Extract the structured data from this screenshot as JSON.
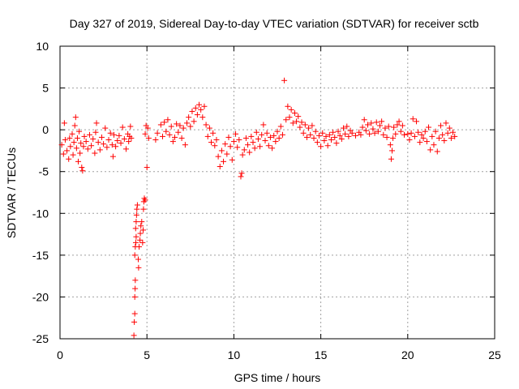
{
  "chart_data": {
    "type": "scatter",
    "title": "Day 327 of 2019, Sidereal Day-to-day VTEC variation (SDTVAR) for receiver sctb",
    "xlabel": "GPS time / hours",
    "ylabel": "SDTVAR / TECUs",
    "xlim": [
      0,
      25
    ],
    "ylim": [
      -25,
      10
    ],
    "xticks": [
      0,
      5,
      10,
      15,
      20,
      25
    ],
    "yticks": [
      -25,
      -20,
      -15,
      -10,
      -5,
      0,
      5,
      10
    ],
    "grid": true,
    "marker": "+",
    "color": "#ff0000",
    "series": [
      {
        "name": "SDTVAR",
        "points": [
          [
            0.1,
            -1.8
          ],
          [
            0.2,
            -2.9
          ],
          [
            0.25,
            0.8
          ],
          [
            0.3,
            -1.2
          ],
          [
            0.4,
            -2.5
          ],
          [
            0.5,
            -3.5
          ],
          [
            0.55,
            -1.0
          ],
          [
            0.6,
            -2.0
          ],
          [
            0.7,
            -0.5
          ],
          [
            0.75,
            -3.0
          ],
          [
            0.8,
            -1.5
          ],
          [
            0.85,
            0.5
          ],
          [
            0.9,
            1.5
          ],
          [
            0.95,
            -2.2
          ],
          [
            1.0,
            -1.0
          ],
          [
            1.05,
            -3.8
          ],
          [
            1.1,
            -0.2
          ],
          [
            1.15,
            -2.8
          ],
          [
            1.2,
            -1.6
          ],
          [
            1.25,
            -4.5
          ],
          [
            1.3,
            -4.9
          ],
          [
            1.35,
            -2.0
          ],
          [
            1.4,
            -0.8
          ],
          [
            1.5,
            -1.4
          ],
          [
            1.6,
            -2.3
          ],
          [
            1.7,
            -0.6
          ],
          [
            1.8,
            -1.9
          ],
          [
            1.9,
            -1.1
          ],
          [
            2.0,
            -2.8
          ],
          [
            2.05,
            -0.3
          ],
          [
            2.1,
            0.8
          ],
          [
            2.2,
            -1.5
          ],
          [
            2.3,
            -2.4
          ],
          [
            2.4,
            -0.9
          ],
          [
            2.5,
            -1.7
          ],
          [
            2.6,
            0.2
          ],
          [
            2.7,
            -2.1
          ],
          [
            2.8,
            -1.2
          ],
          [
            2.9,
            -0.4
          ],
          [
            3.0,
            -1.8
          ],
          [
            3.05,
            -3.2
          ],
          [
            3.1,
            -0.6
          ],
          [
            3.2,
            -2.0
          ],
          [
            3.3,
            -1.3
          ],
          [
            3.4,
            -0.7
          ],
          [
            3.5,
            -1.6
          ],
          [
            3.6,
            0.3
          ],
          [
            3.7,
            -1.1
          ],
          [
            3.8,
            -2.3
          ],
          [
            3.9,
            -0.5
          ],
          [
            3.95,
            -1.4
          ],
          [
            4.0,
            -0.8
          ],
          [
            4.05,
            0.4
          ],
          [
            4.1,
            -1.0
          ],
          [
            4.25,
            -24.6
          ],
          [
            4.27,
            -23.0
          ],
          [
            4.3,
            -22.0
          ],
          [
            4.3,
            -20.0
          ],
          [
            4.32,
            -19.0
          ],
          [
            4.33,
            -18.0
          ],
          [
            4.3,
            -15.0
          ],
          [
            4.33,
            -14.0
          ],
          [
            4.36,
            -13.5
          ],
          [
            4.38,
            -12.8
          ],
          [
            4.35,
            -11.8
          ],
          [
            4.38,
            -11.0
          ],
          [
            4.4,
            -10.2
          ],
          [
            4.42,
            -9.5
          ],
          [
            4.45,
            -9.0
          ],
          [
            4.5,
            -15.5
          ],
          [
            4.52,
            -16.5
          ],
          [
            4.55,
            -14.0
          ],
          [
            4.6,
            -13.2
          ],
          [
            4.62,
            -12.4
          ],
          [
            4.65,
            -11.5
          ],
          [
            4.7,
            -11.0
          ],
          [
            4.75,
            -13.5
          ],
          [
            4.78,
            -12.0
          ],
          [
            4.8,
            -9.5
          ],
          [
            4.82,
            -8.6
          ],
          [
            4.85,
            -8.2
          ],
          [
            4.9,
            -8.4
          ],
          [
            4.9,
            -0.5
          ],
          [
            4.95,
            0.5
          ],
          [
            5.0,
            -4.5
          ],
          [
            5.05,
            0.2
          ],
          [
            5.1,
            -1.0
          ],
          [
            5.5,
            -1.2
          ],
          [
            5.6,
            -0.4
          ],
          [
            5.8,
            0.6
          ],
          [
            5.9,
            -0.8
          ],
          [
            6.0,
            0.9
          ],
          [
            6.1,
            -0.2
          ],
          [
            6.2,
            1.2
          ],
          [
            6.3,
            -0.6
          ],
          [
            6.4,
            0.4
          ],
          [
            6.5,
            -1.4
          ],
          [
            6.6,
            -0.9
          ],
          [
            6.7,
            0.7
          ],
          [
            6.8,
            -0.3
          ],
          [
            6.9,
            0.5
          ],
          [
            7.0,
            -1.0
          ],
          [
            7.1,
            0.2
          ],
          [
            7.2,
            -1.8
          ],
          [
            7.3,
            0.8
          ],
          [
            7.4,
            1.5
          ],
          [
            7.5,
            0.4
          ],
          [
            7.6,
            2.2
          ],
          [
            7.7,
            1.0
          ],
          [
            7.8,
            2.6
          ],
          [
            7.9,
            1.8
          ],
          [
            8.0,
            3.0
          ],
          [
            8.1,
            2.4
          ],
          [
            8.2,
            1.5
          ],
          [
            8.3,
            2.8
          ],
          [
            8.4,
            0.6
          ],
          [
            8.5,
            -0.8
          ],
          [
            8.6,
            0.2
          ],
          [
            8.7,
            -1.5
          ],
          [
            8.8,
            -0.4
          ],
          [
            8.9,
            -1.9
          ],
          [
            9.0,
            -1.2
          ],
          [
            9.1,
            -3.2
          ],
          [
            9.2,
            -4.4
          ],
          [
            9.3,
            -2.5
          ],
          [
            9.4,
            -3.8
          ],
          [
            9.5,
            -1.7
          ],
          [
            9.6,
            -2.9
          ],
          [
            9.7,
            -0.9
          ],
          [
            9.8,
            -2.0
          ],
          [
            9.9,
            -3.6
          ],
          [
            10.0,
            -1.4
          ],
          [
            10.1,
            -0.5
          ],
          [
            10.2,
            -2.1
          ],
          [
            10.3,
            -1.2
          ],
          [
            10.4,
            -5.6
          ],
          [
            10.45,
            -5.2
          ],
          [
            10.5,
            -3.0
          ],
          [
            10.6,
            -2.4
          ],
          [
            10.7,
            -1.0
          ],
          [
            10.8,
            -1.8
          ],
          [
            10.9,
            -2.7
          ],
          [
            11.0,
            -0.8
          ],
          [
            11.1,
            -1.5
          ],
          [
            11.2,
            -2.2
          ],
          [
            11.3,
            -0.3
          ],
          [
            11.4,
            -1.1
          ],
          [
            11.5,
            -2.0
          ],
          [
            11.6,
            -0.6
          ],
          [
            11.7,
            0.6
          ],
          [
            11.8,
            -1.3
          ],
          [
            11.9,
            -0.4
          ],
          [
            12.0,
            -1.9
          ],
          [
            12.1,
            -0.9
          ],
          [
            12.2,
            -2.2
          ],
          [
            12.3,
            -0.7
          ],
          [
            12.4,
            -1.4
          ],
          [
            12.5,
            -0.2
          ],
          [
            12.6,
            -1.0
          ],
          [
            12.7,
            0.4
          ],
          [
            12.8,
            -0.6
          ],
          [
            12.9,
            5.9
          ],
          [
            13.0,
            1.2
          ],
          [
            13.1,
            2.8
          ],
          [
            13.2,
            1.5
          ],
          [
            13.3,
            2.4
          ],
          [
            13.4,
            0.8
          ],
          [
            13.5,
            2.0
          ],
          [
            13.6,
            1.0
          ],
          [
            13.7,
            1.6
          ],
          [
            13.8,
            0.3
          ],
          [
            13.9,
            0.9
          ],
          [
            14.0,
            -0.4
          ],
          [
            14.1,
            0.6
          ],
          [
            14.2,
            -0.9
          ],
          [
            14.3,
            0.2
          ],
          [
            14.4,
            -0.6
          ],
          [
            14.5,
            0.5
          ],
          [
            14.6,
            -1.0
          ],
          [
            14.7,
            -0.2
          ],
          [
            14.8,
            -1.5
          ],
          [
            14.9,
            -0.7
          ],
          [
            15.0,
            -2.0
          ],
          [
            15.1,
            -0.4
          ],
          [
            15.2,
            -1.3
          ],
          [
            15.3,
            -0.8
          ],
          [
            15.4,
            -1.9
          ],
          [
            15.5,
            -0.6
          ],
          [
            15.6,
            -1.2
          ],
          [
            15.7,
            -0.3
          ],
          [
            15.8,
            -0.9
          ],
          [
            15.9,
            -1.6
          ],
          [
            16.0,
            -0.2
          ],
          [
            16.1,
            -0.7
          ],
          [
            16.2,
            -1.1
          ],
          [
            16.3,
            0.2
          ],
          [
            16.4,
            -0.5
          ],
          [
            16.5,
            0.4
          ],
          [
            16.6,
            -0.8
          ],
          [
            16.7,
            -0.1
          ],
          [
            16.8,
            -0.4
          ],
          [
            17.0,
            -0.7
          ],
          [
            17.2,
            -0.3
          ],
          [
            17.3,
            -0.6
          ],
          [
            17.4,
            0.3
          ],
          [
            17.5,
            1.2
          ],
          [
            17.6,
            -0.1
          ],
          [
            17.7,
            0.6
          ],
          [
            17.8,
            -0.5
          ],
          [
            17.9,
            0.8
          ],
          [
            18.0,
            0.1
          ],
          [
            18.1,
            -0.4
          ],
          [
            18.2,
            0.9
          ],
          [
            18.3,
            -0.2
          ],
          [
            18.4,
            0.5
          ],
          [
            18.5,
            1.0
          ],
          [
            18.6,
            -0.6
          ],
          [
            18.7,
            0.2
          ],
          [
            18.8,
            -0.9
          ],
          [
            18.9,
            0.4
          ],
          [
            19.0,
            -1.8
          ],
          [
            19.05,
            -3.5
          ],
          [
            19.1,
            -2.5
          ],
          [
            19.15,
            -1.0
          ],
          [
            19.2,
            0.3
          ],
          [
            19.3,
            -0.5
          ],
          [
            19.4,
            0.6
          ],
          [
            19.5,
            1.0
          ],
          [
            19.6,
            -0.2
          ],
          [
            19.7,
            0.5
          ],
          [
            19.8,
            -0.6
          ],
          [
            20.0,
            -0.5
          ],
          [
            20.1,
            -1.2
          ],
          [
            20.2,
            -0.4
          ],
          [
            20.3,
            1.3
          ],
          [
            20.4,
            -0.8
          ],
          [
            20.5,
            1.0
          ],
          [
            20.6,
            -0.3
          ],
          [
            20.7,
            -1.5
          ],
          [
            20.8,
            -0.6
          ],
          [
            20.9,
            -1.0
          ],
          [
            21.0,
            -0.2
          ],
          [
            21.1,
            -1.4
          ],
          [
            21.2,
            0.3
          ],
          [
            21.3,
            -2.4
          ],
          [
            21.4,
            -0.8
          ],
          [
            21.5,
            -1.8
          ],
          [
            21.6,
            -0.2
          ],
          [
            21.7,
            -2.6
          ],
          [
            21.8,
            -1.0
          ],
          [
            21.9,
            0.5
          ],
          [
            22.0,
            -0.6
          ],
          [
            22.1,
            -1.3
          ],
          [
            22.2,
            0.8
          ],
          [
            22.3,
            -0.4
          ],
          [
            22.4,
            0.2
          ],
          [
            22.5,
            -1.0
          ],
          [
            22.6,
            -0.3
          ],
          [
            22.7,
            -0.8
          ]
        ]
      }
    ]
  }
}
